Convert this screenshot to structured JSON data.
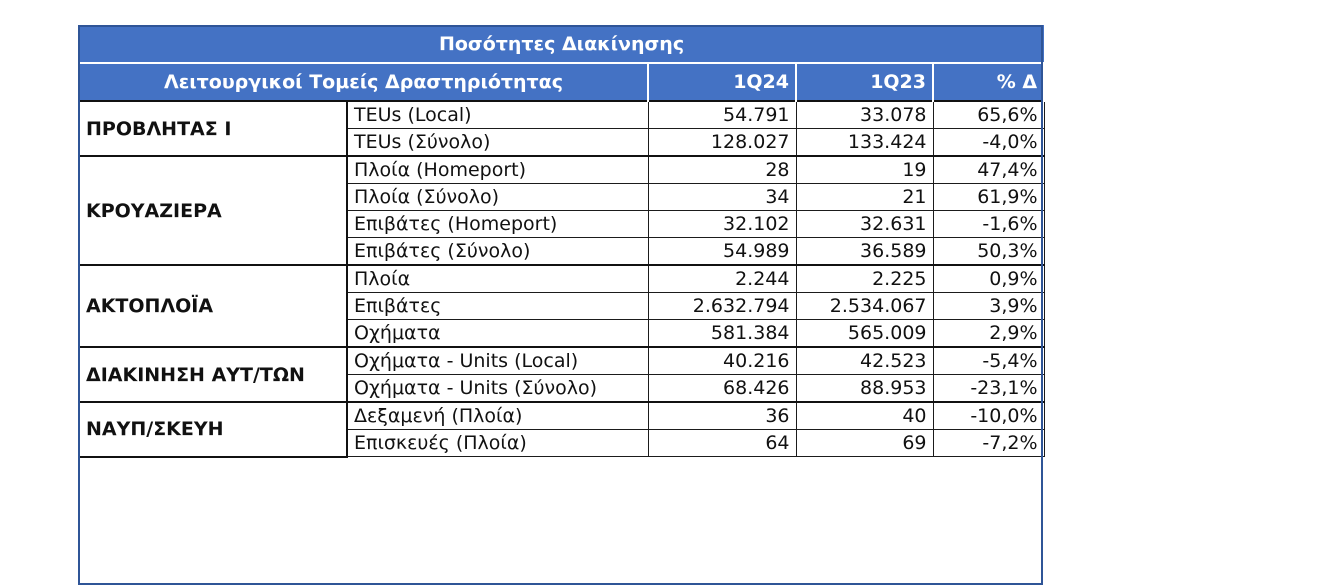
{
  "table": {
    "title": "Ποσότητες Διακίνησης",
    "headers": {
      "sector": "Λειτουργικοί Τομείς Δραστηριότητας",
      "col_1q24": "1Q24",
      "col_1q23": "1Q23",
      "col_delta": "% Δ"
    },
    "groups": [
      {
        "sector": "ΠΡΟΒΛΗΤΑΣ Ι",
        "rows": [
          {
            "metric": "TEUs (Local)",
            "q24": "54.791",
            "q23": "33.078",
            "delta": "65,6%"
          },
          {
            "metric": "TEUs (Σύνολο)",
            "q24": "128.027",
            "q23": "133.424",
            "delta": "-4,0%"
          }
        ]
      },
      {
        "sector": "ΚΡΟΥΑΖΙΕΡΑ",
        "rows": [
          {
            "metric": "Πλοία (Homeport)",
            "q24": "28",
            "q23": "19",
            "delta": "47,4%"
          },
          {
            "metric": "Πλοία (Σύνολο)",
            "q24": "34",
            "q23": "21",
            "delta": "61,9%"
          },
          {
            "metric": "Επιβάτες (Homeport)",
            "q24": "32.102",
            "q23": "32.631",
            "delta": "-1,6%"
          },
          {
            "metric": "Επιβάτες (Σύνολο)",
            "q24": "54.989",
            "q23": "36.589",
            "delta": "50,3%"
          }
        ]
      },
      {
        "sector": "ΑΚΤΟΠΛΟΪΑ",
        "rows": [
          {
            "metric": "Πλοία",
            "q24": "2.244",
            "q23": "2.225",
            "delta": "0,9%"
          },
          {
            "metric": "Επιβάτες",
            "q24": "2.632.794",
            "q23": "2.534.067",
            "delta": "3,9%"
          },
          {
            "metric": "Οχήματα",
            "q24": "581.384",
            "q23": "565.009",
            "delta": "2,9%"
          }
        ]
      },
      {
        "sector": "ΔΙΑΚΙΝΗΣΗ ΑΥΤ/ΤΩΝ",
        "rows": [
          {
            "metric": "Οχήματα - Units (Local)",
            "q24": "40.216",
            "q23": "42.523",
            "delta": "-5,4%"
          },
          {
            "metric": "Οχήματα - Units (Σύνολο)",
            "q24": "68.426",
            "q23": "88.953",
            "delta": "-23,1%"
          }
        ]
      },
      {
        "sector": "ΝΑΥΠ/ΣΚΕΥΗ",
        "rows": [
          {
            "metric": "Δεξαμενή (Πλοία)",
            "q24": "36",
            "q23": "40",
            "delta": "-10,0%"
          },
          {
            "metric": "Επισκευές (Πλοία)",
            "q24": "64",
            "q23": "69",
            "delta": "-7,2%"
          }
        ]
      }
    ]
  },
  "colors": {
    "header_bg": "#4472c4",
    "header_text": "#ffffff",
    "border": "#1b1b1b"
  }
}
